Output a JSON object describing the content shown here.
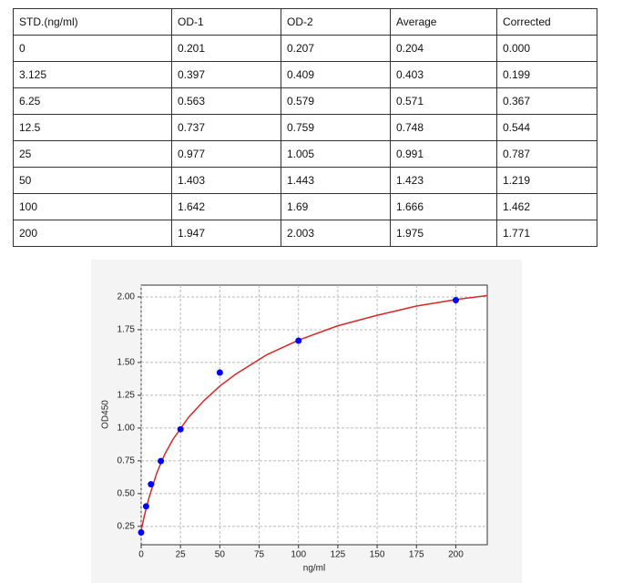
{
  "table": {
    "header": [
      "STD.(ng/ml)",
      "OD-1",
      "OD-2",
      "Average",
      "Corrected"
    ],
    "rows": [
      [
        "0",
        "0.201",
        "0.207",
        "0.204",
        "0.000"
      ],
      [
        "3.125",
        "0.397",
        "0.409",
        "0.403",
        "0.199"
      ],
      [
        "6.25",
        "0.563",
        "0.579",
        "0.571",
        "0.367"
      ],
      [
        "12.5",
        "0.737",
        "0.759",
        "0.748",
        "0.544"
      ],
      [
        "25",
        "0.977",
        "1.005",
        "0.991",
        "0.787"
      ],
      [
        "50",
        "1.403",
        "1.443",
        "1.423",
        "1.219"
      ],
      [
        "100",
        "1.642",
        "1.69",
        "1.666",
        "1.462"
      ],
      [
        "200",
        "1.947",
        "2.003",
        "1.975",
        "1.771"
      ]
    ]
  },
  "chart_data": {
    "type": "scatter",
    "x_label": "ng/ml",
    "y_label": "OD450",
    "series": [
      {
        "type": "scatter",
        "color": "#0000ff",
        "x": [
          0,
          3.125,
          6.25,
          12.5,
          25,
          50,
          100,
          200
        ],
        "values": [
          0.204,
          0.403,
          0.571,
          0.748,
          0.991,
          1.423,
          1.666,
          1.975
        ]
      },
      {
        "type": "line",
        "color": "#d62728",
        "x": [
          0,
          2,
          5,
          10,
          15,
          20,
          30,
          40,
          50,
          60,
          80,
          100,
          125,
          150,
          175,
          200,
          220
        ],
        "values": [
          0.22,
          0.33,
          0.47,
          0.66,
          0.8,
          0.91,
          1.08,
          1.21,
          1.32,
          1.41,
          1.56,
          1.67,
          1.78,
          1.86,
          1.93,
          1.98,
          2.01
        ]
      }
    ],
    "xlim": [
      0,
      220
    ],
    "ylim": [
      0.11,
      2.09
    ],
    "xticks": [
      0,
      25,
      50,
      75,
      100,
      125,
      150,
      175,
      200
    ],
    "yticks": [
      {
        "value": 0.25,
        "label": "0.25"
      },
      {
        "value": 0.5,
        "label": "0.50"
      },
      {
        "value": 0.75,
        "label": "0.75"
      },
      {
        "value": 1,
        "label": "1.00"
      },
      {
        "value": 1.25,
        "label": "1.25"
      },
      {
        "value": 1.5,
        "label": "1.50"
      },
      {
        "value": 1.75,
        "label": "1.75"
      },
      {
        "value": 2,
        "label": "2.00"
      }
    ],
    "grid": true
  }
}
